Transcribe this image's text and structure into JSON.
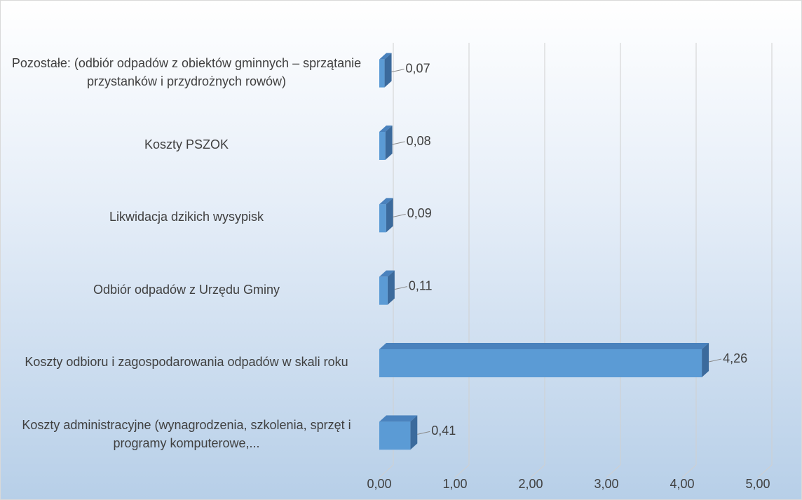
{
  "chart_data": {
    "type": "bar3d_horizontal",
    "categories": [
      "Koszty administracyjne (wynagrodzenia, szkolenia, sprzęt i programy komputerowe,...",
      "Koszty odbioru i zagospodarowania odpadów w skali roku",
      "Odbiór odpadów z Urzędu Gminy",
      "Likwidacja dzikich wysypisk",
      "Koszty PSZOK",
      "Pozostałe: (odbiór odpadów z obiektów gminnych – sprzątanie przystanków i przydrożnych rowów)"
    ],
    "values": [
      0.41,
      4.26,
      0.11,
      0.09,
      0.08,
      0.07
    ],
    "value_labels": [
      "0,41",
      "4,26",
      "0,11",
      "0,09",
      "0,08",
      "0,07"
    ],
    "color": "#5b9bd5",
    "xlim": [
      0,
      5
    ],
    "xticks": [
      {
        "value": 0,
        "label": "0,00"
      },
      {
        "value": 1,
        "label": "1,00"
      },
      {
        "value": 2,
        "label": "2,00"
      },
      {
        "value": 3,
        "label": "3,00"
      },
      {
        "value": 4,
        "label": "4,00"
      },
      {
        "value": 5,
        "label": "5,00"
      }
    ],
    "grid": true
  }
}
